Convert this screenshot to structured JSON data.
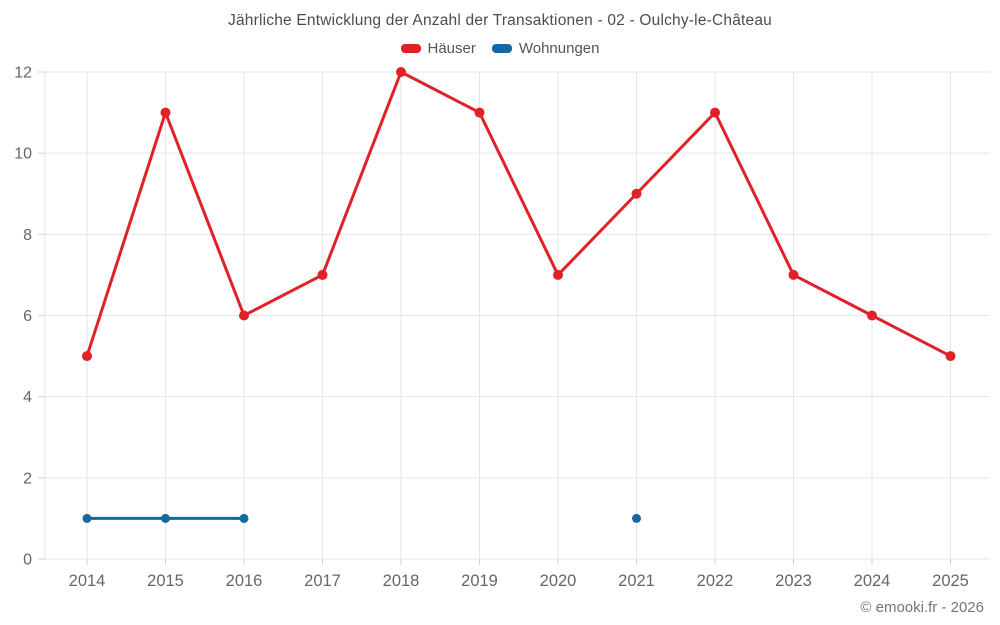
{
  "title": "Jährliche Entwicklung der Anzahl der Transaktionen - 02 - Oulchy-le-Château",
  "legend": {
    "items": [
      {
        "label": "Häuser",
        "color": "#e02227"
      },
      {
        "label": "Wohnungen",
        "color": "#15699f"
      }
    ]
  },
  "footer": {
    "credit": "© emooki.fr - 2026"
  },
  "colors": {
    "hauser_red": "#e02227",
    "wohnungen_blue": "#15699f",
    "grid": "#e6e6e6",
    "tick": "#d2d2d2",
    "axis_text": "#666666"
  },
  "chart_data": {
    "type": "line",
    "title": "Jährliche Entwicklung der Anzahl der Transaktionen - 02 - Oulchy-le-Château",
    "categories": [
      "2014",
      "2015",
      "2016",
      "2017",
      "2018",
      "2019",
      "2020",
      "2021",
      "2022",
      "2023",
      "2024",
      "2025"
    ],
    "series": [
      {
        "name": "Häuser",
        "color": "#e02227",
        "values": [
          5,
          11,
          6,
          7,
          12,
          11,
          7,
          9,
          11,
          7,
          6,
          5
        ]
      },
      {
        "name": "Wohnungen",
        "color": "#15699f",
        "values": [
          1,
          1,
          1,
          null,
          null,
          null,
          null,
          1,
          null,
          null,
          null,
          null
        ]
      }
    ],
    "xlabel": "",
    "ylabel": "",
    "ylim": [
      0,
      12
    ],
    "yticks": [
      0,
      2,
      4,
      6,
      8,
      10,
      12
    ],
    "grid": true,
    "legend_position": "top"
  }
}
